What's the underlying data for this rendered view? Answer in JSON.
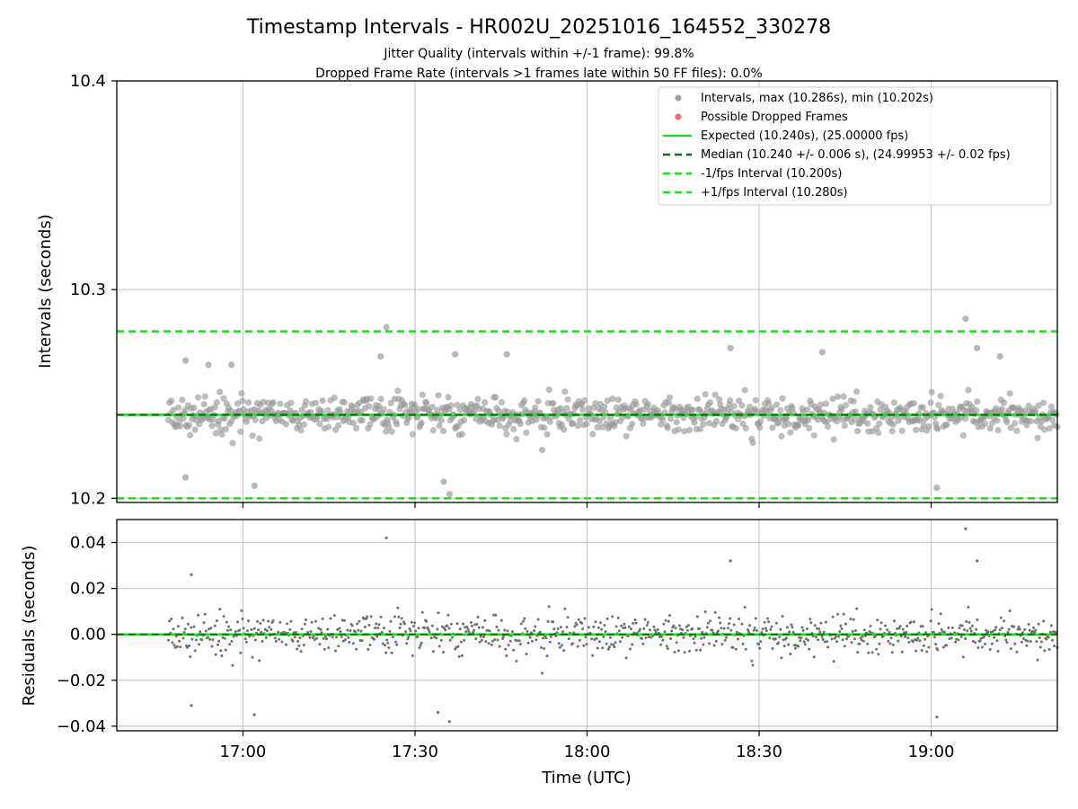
{
  "chart_data": [
    {
      "type": "scatter",
      "title": "Timestamp Intervals - HR002U_20251016_164552_330278",
      "subtitle_lines": [
        "Jitter Quality (intervals within +/-1 frame): 99.8%",
        "Dropped Frame Rate (intervals >1 frames late within 50 FF files): 0.0%"
      ],
      "xlabel": "",
      "ylabel": "Intervals (seconds)",
      "x_ticks": [
        "17:00",
        "17:30",
        "18:00",
        "18:30",
        "19:00"
      ],
      "x_range": [
        "16:38",
        "19:22"
      ],
      "ylim": [
        10.198,
        10.4
      ],
      "y_ticks": [
        "10.2",
        "10.3",
        "10.4"
      ],
      "grid": true,
      "legend_position": "top-right",
      "legend": [
        "Intervals, max (10.286s), min (10.202s)",
        "Possible Dropped Frames",
        "Expected (10.240s), (25.00000 fps)",
        "Median (10.240 +/- 0.006 s), (24.99953 +/- 0.02 fps)",
        "-1/fps Interval (10.200s)",
        "+1/fps Interval (10.280s)"
      ],
      "lines": {
        "expected": 10.24,
        "median": 10.24,
        "minus_one_frame": 10.2,
        "plus_one_frame": 10.28
      },
      "summary": {
        "max": 10.286,
        "min": 10.202,
        "median": 10.24,
        "std": 0.006
      },
      "highlighted_points": [
        {
          "t": "16:50",
          "v": 10.266
        },
        {
          "t": "16:50",
          "v": 10.21
        },
        {
          "t": "16:54",
          "v": 10.264
        },
        {
          "t": "16:58",
          "v": 10.264
        },
        {
          "t": "17:02",
          "v": 10.206
        },
        {
          "t": "17:24",
          "v": 10.268
        },
        {
          "t": "17:25",
          "v": 10.282
        },
        {
          "t": "17:35",
          "v": 10.208
        },
        {
          "t": "17:36",
          "v": 10.202
        },
        {
          "t": "17:37",
          "v": 10.269
        },
        {
          "t": "17:46",
          "v": 10.269
        },
        {
          "t": "18:25",
          "v": 10.272
        },
        {
          "t": "18:41",
          "v": 10.27
        },
        {
          "t": "19:01",
          "v": 10.205
        },
        {
          "t": "19:06",
          "v": 10.286
        },
        {
          "t": "19:08",
          "v": 10.272
        },
        {
          "t": "19:12",
          "v": 10.268
        }
      ]
    },
    {
      "type": "scatter",
      "xlabel": "Time (UTC)",
      "ylabel": "Residuals (seconds)",
      "x_ticks": [
        "17:00",
        "17:30",
        "18:00",
        "18:30",
        "19:00"
      ],
      "ylim": [
        -0.042,
        0.05
      ],
      "y_ticks": [
        "−0.04",
        "−0.02",
        "0.00",
        "0.02",
        "0.04"
      ],
      "grid": true,
      "zero_line": 0.0,
      "highlighted_points": [
        {
          "t": "16:51",
          "v": 0.026
        },
        {
          "t": "16:51",
          "v": -0.031
        },
        {
          "t": "17:02",
          "v": -0.035
        },
        {
          "t": "17:25",
          "v": 0.042
        },
        {
          "t": "17:34",
          "v": -0.034
        },
        {
          "t": "17:36",
          "v": -0.038
        },
        {
          "t": "18:25",
          "v": 0.032
        },
        {
          "t": "19:01",
          "v": -0.036
        },
        {
          "t": "19:06",
          "v": 0.046
        },
        {
          "t": "19:08",
          "v": 0.032
        }
      ]
    }
  ]
}
